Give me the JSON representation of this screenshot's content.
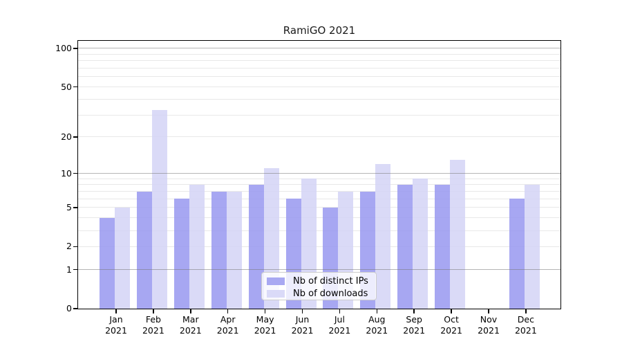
{
  "chart_data": {
    "type": "bar",
    "title": "RamiGO 2021",
    "categories": [
      "Jan",
      "Feb",
      "Mar",
      "Apr",
      "May",
      "Jun",
      "Jul",
      "Aug",
      "Sep",
      "Oct",
      "Nov",
      "Dec"
    ],
    "category_year": "2021",
    "series": [
      {
        "name": "Nb of distinct IPs",
        "color": "#a8a8f2",
        "bar_rgba": "rgba(152,152,240,0.85)",
        "values": [
          4,
          7,
          6,
          7,
          8,
          6,
          5,
          7,
          8,
          8,
          0,
          6
        ]
      },
      {
        "name": "Nb of downloads",
        "color": "#dadaf8",
        "bar_rgba": "rgba(211,211,246,0.85)",
        "values": [
          5,
          33,
          8,
          7,
          11,
          9,
          7,
          12,
          9,
          13,
          0,
          8
        ]
      }
    ],
    "y_axis": {
      "scale": "log1p",
      "tick_labels": [
        "100",
        "50",
        "20",
        "10",
        "5",
        "2",
        "1",
        "0"
      ],
      "ticks": [
        100,
        50,
        20,
        10,
        5,
        2,
        1,
        0
      ],
      "major_gridlines": [
        1,
        10,
        100
      ],
      "minor_gridlines": [
        2,
        3,
        4,
        5,
        6,
        7,
        8,
        9,
        20,
        30,
        40,
        50,
        60,
        70,
        80,
        90
      ],
      "ylim": [
        0,
        115
      ]
    },
    "legend": {
      "position": "lower-center",
      "entries": [
        "Nb of distinct IPs",
        "Nb of downloads"
      ]
    },
    "grid": true
  }
}
